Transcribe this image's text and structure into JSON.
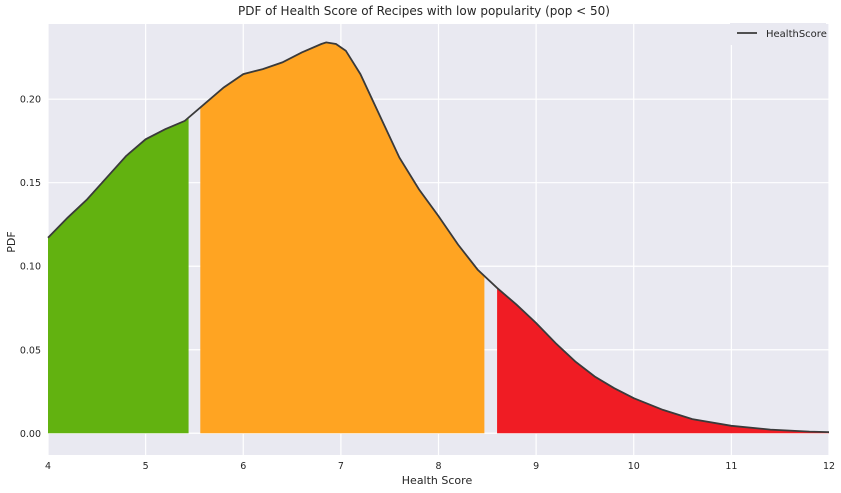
{
  "chart_data": {
    "type": "area",
    "title": "PDF of Health Score of Recipes with low popularity (pop < 50)",
    "xlabel": "Health Score",
    "ylabel": "PDF",
    "xlim": [
      4,
      12
    ],
    "ylim": [
      -0.013,
      0.245
    ],
    "xticks": [
      "4",
      "5",
      "6",
      "7",
      "8",
      "9",
      "10",
      "11",
      "12"
    ],
    "yticks": [
      "0.00",
      "0.05",
      "0.10",
      "0.15",
      "0.20"
    ],
    "grid": true,
    "background": "#e9e9f1",
    "legend": {
      "placement": "top-right",
      "entries": [
        "HealthScore"
      ]
    },
    "series": [
      {
        "name": "HealthScore",
        "color": "#3a3a3a",
        "x": [
          4.0,
          4.2,
          4.4,
          4.6,
          4.8,
          5.0,
          5.2,
          5.4,
          5.6,
          5.8,
          6.0,
          6.2,
          6.4,
          6.6,
          6.8,
          6.85,
          6.95,
          7.05,
          7.2,
          7.4,
          7.6,
          7.8,
          8.0,
          8.2,
          8.4,
          8.6,
          8.8,
          9.0,
          9.2,
          9.4,
          9.6,
          9.8,
          10.0,
          10.3,
          10.6,
          11.0,
          11.4,
          11.8,
          12.0
        ],
        "y": [
          0.117,
          0.129,
          0.14,
          0.153,
          0.166,
          0.176,
          0.182,
          0.187,
          0.197,
          0.207,
          0.215,
          0.218,
          0.222,
          0.228,
          0.233,
          0.234,
          0.233,
          0.229,
          0.215,
          0.19,
          0.165,
          0.146,
          0.13,
          0.113,
          0.098,
          0.087,
          0.077,
          0.066,
          0.054,
          0.043,
          0.034,
          0.027,
          0.021,
          0.014,
          0.0085,
          0.0045,
          0.0022,
          0.001,
          0.0007
        ]
      }
    ],
    "bands": [
      {
        "from": 4.0,
        "to": 5.44,
        "color": "#62b210"
      },
      {
        "from": 5.56,
        "to": 8.47,
        "color": "#ffa422"
      },
      {
        "from": 8.6,
        "to": 12.0,
        "color": "#f01c24"
      }
    ]
  }
}
